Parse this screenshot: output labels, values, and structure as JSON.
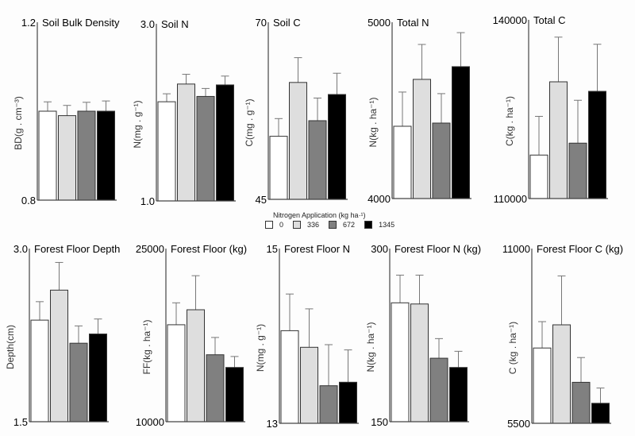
{
  "legend": {
    "title": "Nitrogen Application  (kg  ha·¹)",
    "entries": [
      {
        "label": "0",
        "color": "#ffffff"
      },
      {
        "label": "336",
        "color": "#dedede"
      },
      {
        "label": "672",
        "color": "#808080"
      },
      {
        "label": "1345",
        "color": "#000000"
      }
    ]
  },
  "chart_data": [
    {
      "type": "bar",
      "title": "Soil Bulk Density",
      "ylabel": "BD(g . cm⁻³)",
      "ylim": [
        0.8,
        1.2
      ],
      "ticks": [
        "0.8",
        "1.2"
      ],
      "categories": [
        "0",
        "336",
        "672",
        "1345"
      ],
      "values": [
        1.0,
        0.99,
        1.0,
        1.0
      ],
      "errors": [
        0.021,
        0.023,
        0.02,
        0.023
      ]
    },
    {
      "type": "bar",
      "title": "Soil N",
      "ylabel": "N(mg . g⁻¹)",
      "ylim": [
        1.0,
        3.0
      ],
      "ticks": [
        "1.0",
        "3.0"
      ],
      "categories": [
        "0",
        "336",
        "672",
        "1345"
      ],
      "values": [
        2.12,
        2.32,
        2.18,
        2.31
      ],
      "errors": [
        0.09,
        0.11,
        0.09,
        0.1
      ]
    },
    {
      "type": "bar",
      "title": "Soil C",
      "ylabel": "C(mg . g⁻¹)",
      "ylim": [
        45,
        70
      ],
      "ticks": [
        "45",
        "70"
      ],
      "categories": [
        "0",
        "336",
        "672",
        "1345"
      ],
      "values": [
        53.9,
        61.5,
        56.1,
        59.8
      ],
      "errors": [
        2.5,
        3.5,
        3.2,
        3.0
      ]
    },
    {
      "type": "bar",
      "title": "Total N",
      "ylabel": "N(kg . ha⁻¹)",
      "ylim": [
        4000,
        5000
      ],
      "ticks": [
        "4000",
        "5000"
      ],
      "categories": [
        "0",
        "336",
        "672",
        "1345"
      ],
      "values": [
        4410,
        4676,
        4428,
        4748
      ],
      "errors": [
        194,
        198,
        167,
        193
      ]
    },
    {
      "type": "bar",
      "title": "Total C",
      "ylabel": "C(kg . ha⁻¹)",
      "ylim": [
        110000,
        140000
      ],
      "ticks": [
        "110000",
        "140000"
      ],
      "categories": [
        "0",
        "336",
        "672",
        "1345"
      ],
      "values": [
        117300,
        129600,
        119300,
        128000
      ],
      "errors": [
        6500,
        7500,
        7200,
        7900
      ]
    },
    {
      "type": "bar",
      "title": "Forest Floor Depth",
      "ylabel": "Depth(cm)",
      "ylim": [
        1.5,
        3.0
      ],
      "ticks": [
        "1.5",
        "3.0"
      ],
      "categories": [
        "0",
        "336",
        "672",
        "1345"
      ],
      "values": [
        2.38,
        2.64,
        2.18,
        2.26
      ],
      "errors": [
        0.16,
        0.24,
        0.15,
        0.13
      ]
    },
    {
      "type": "bar",
      "title": "Forest Floor (kg)",
      "ylabel": "FF(kg . ha⁻¹)",
      "ylim": [
        10000,
        25000
      ],
      "ticks": [
        "10000",
        "25000"
      ],
      "categories": [
        "0",
        "336",
        "672",
        "1345"
      ],
      "values": [
        18400,
        19700,
        15800,
        14700
      ],
      "errors": [
        1900,
        2950,
        1500,
        950
      ]
    },
    {
      "type": "bar",
      "title": "Forest Floor N",
      "ylabel": "N(mg . g⁻¹)",
      "ylim": [
        13,
        15
      ],
      "ticks": [
        "13",
        "15"
      ],
      "categories": [
        "0",
        "336",
        "672",
        "1345"
      ],
      "values": [
        14.06,
        13.87,
        13.43,
        13.47
      ],
      "errors": [
        0.42,
        0.44,
        0.47,
        0.37
      ]
    },
    {
      "type": "bar",
      "title": "Forest Floor N (kg)",
      "ylabel": "N(kg . ha⁻¹)",
      "ylim": [
        150,
        300
      ],
      "ticks": [
        "150",
        "300"
      ],
      "categories": [
        "0",
        "336",
        "672",
        "1345"
      ],
      "values": [
        253,
        252,
        205,
        197
      ],
      "errors": [
        24,
        25,
        17,
        14
      ]
    },
    {
      "type": "bar",
      "title": "Forest Floor C (kg)",
      "ylabel": "C (kg . ha⁻¹)",
      "ylim": [
        5500,
        11000
      ],
      "ticks": [
        "5500",
        "11000"
      ],
      "categories": [
        "0",
        "336",
        "672",
        "1345"
      ],
      "values": [
        7870,
        8600,
        6790,
        6130
      ],
      "errors": [
        830,
        1540,
        780,
        480
      ]
    }
  ]
}
